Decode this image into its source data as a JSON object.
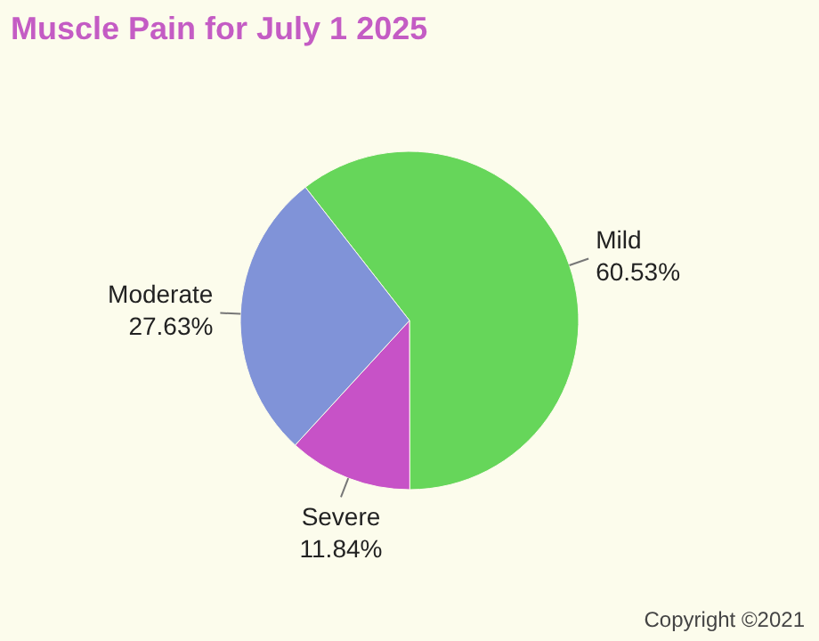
{
  "chart_data": {
    "type": "pie",
    "title": "Muscle Pain for July 1 2025",
    "categories": [
      "Mild",
      "Severe",
      "Moderate"
    ],
    "values": [
      60.53,
      11.84,
      27.63
    ],
    "value_labels": [
      "60.53%",
      "11.84%",
      "27.63%"
    ],
    "colors": [
      "#66d65a",
      "#c752c7",
      "#8093d8"
    ],
    "annotations": [
      "Copyright ©2021"
    ]
  }
}
